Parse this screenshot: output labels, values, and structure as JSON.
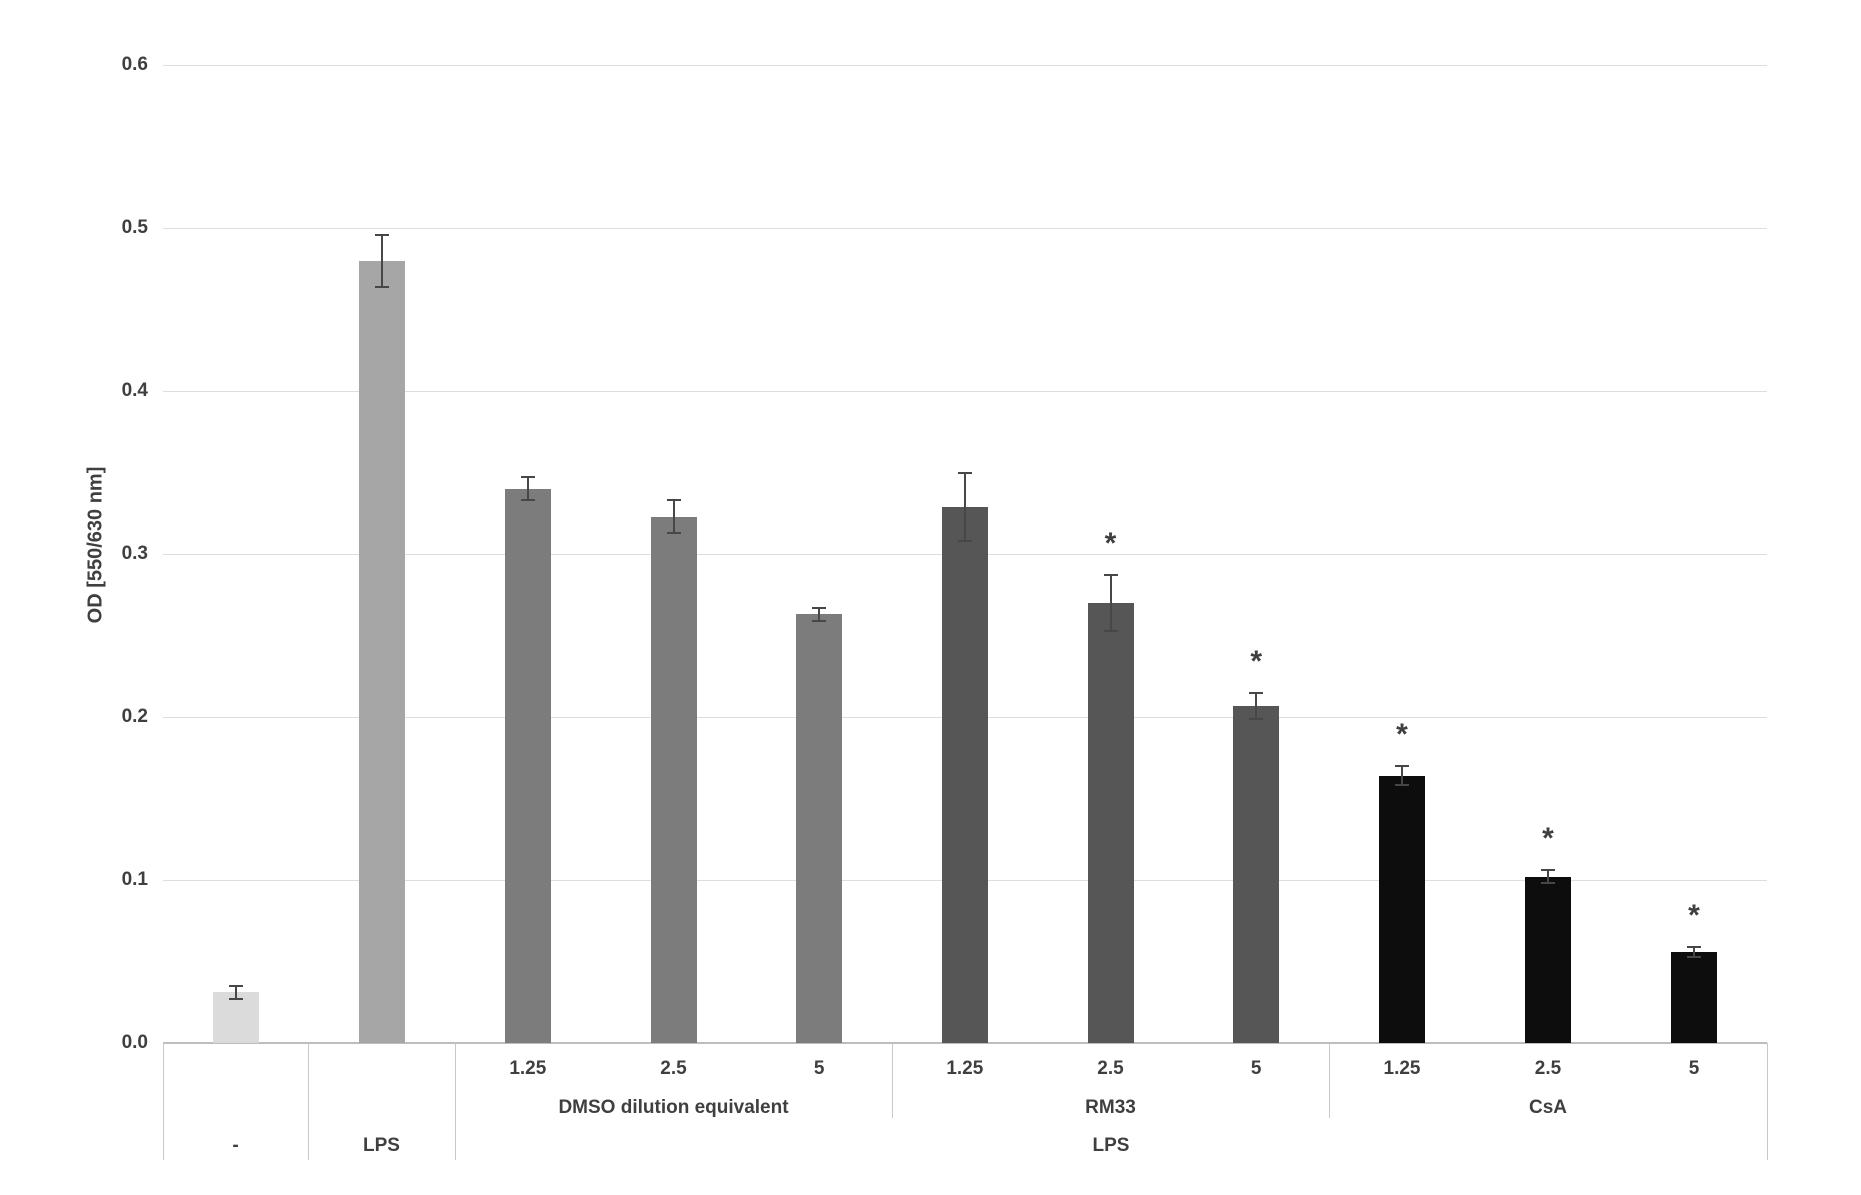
{
  "figure": {
    "background": "#ffffff",
    "text_color": "#3f3f3f",
    "gridline_color": "#dedede",
    "axis_line_color": "#bdbdbd",
    "separator_color": "#c9c9c9",
    "error_bar_color": "#474747"
  },
  "chart_data": {
    "type": "bar",
    "ylabel": "OD [550/630 nm]",
    "xlabel": "",
    "ylim": [
      0,
      0.6
    ],
    "yticks": [
      0,
      0.1,
      0.2,
      0.3,
      0.4,
      0.5,
      0.6
    ],
    "ytick_labels": [
      "0.0",
      "0.1",
      "0.2",
      "0.3",
      "0.4",
      "0.5",
      "0.6"
    ],
    "grid": true,
    "legend": false,
    "error_bars": true,
    "significance_marker": "*",
    "groups": [
      {
        "name": "-",
        "name_row": "treatment",
        "color": "#dbdbdb",
        "bars": [
          {
            "dose_label": "",
            "value": 0.031,
            "error": 0.004,
            "significant": false
          }
        ]
      },
      {
        "name": "LPS",
        "name_row": "treatment",
        "color": "#a6a6a6",
        "bars": [
          {
            "dose_label": "",
            "value": 0.48,
            "error": 0.016,
            "significant": false
          }
        ]
      },
      {
        "name": "DMSO dilution equivalent",
        "name_row": "group",
        "color": "#7c7c7c",
        "bars": [
          {
            "dose_label": "1.25",
            "value": 0.34,
            "error": 0.007,
            "significant": false
          },
          {
            "dose_label": "2.5",
            "value": 0.323,
            "error": 0.01,
            "significant": false
          },
          {
            "dose_label": "5",
            "value": 0.263,
            "error": 0.004,
            "significant": false
          }
        ]
      },
      {
        "name": "RM33",
        "name_row": "group",
        "color": "#565656",
        "bars": [
          {
            "dose_label": "1.25",
            "value": 0.329,
            "error": 0.021,
            "significant": false
          },
          {
            "dose_label": "2.5",
            "value": 0.27,
            "error": 0.017,
            "significant": true
          },
          {
            "dose_label": "5",
            "value": 0.207,
            "error": 0.008,
            "significant": true
          }
        ]
      },
      {
        "name": "CsA",
        "name_row": "group",
        "color": "#0d0d0d",
        "bars": [
          {
            "dose_label": "1.25",
            "value": 0.164,
            "error": 0.006,
            "significant": true
          },
          {
            "dose_label": "2.5",
            "value": 0.102,
            "error": 0.004,
            "significant": true
          },
          {
            "dose_label": "5",
            "value": 0.056,
            "error": 0.003,
            "significant": true
          }
        ]
      }
    ],
    "super_group": {
      "label": "LPS",
      "spans_groups": [
        2,
        3,
        4
      ]
    }
  }
}
